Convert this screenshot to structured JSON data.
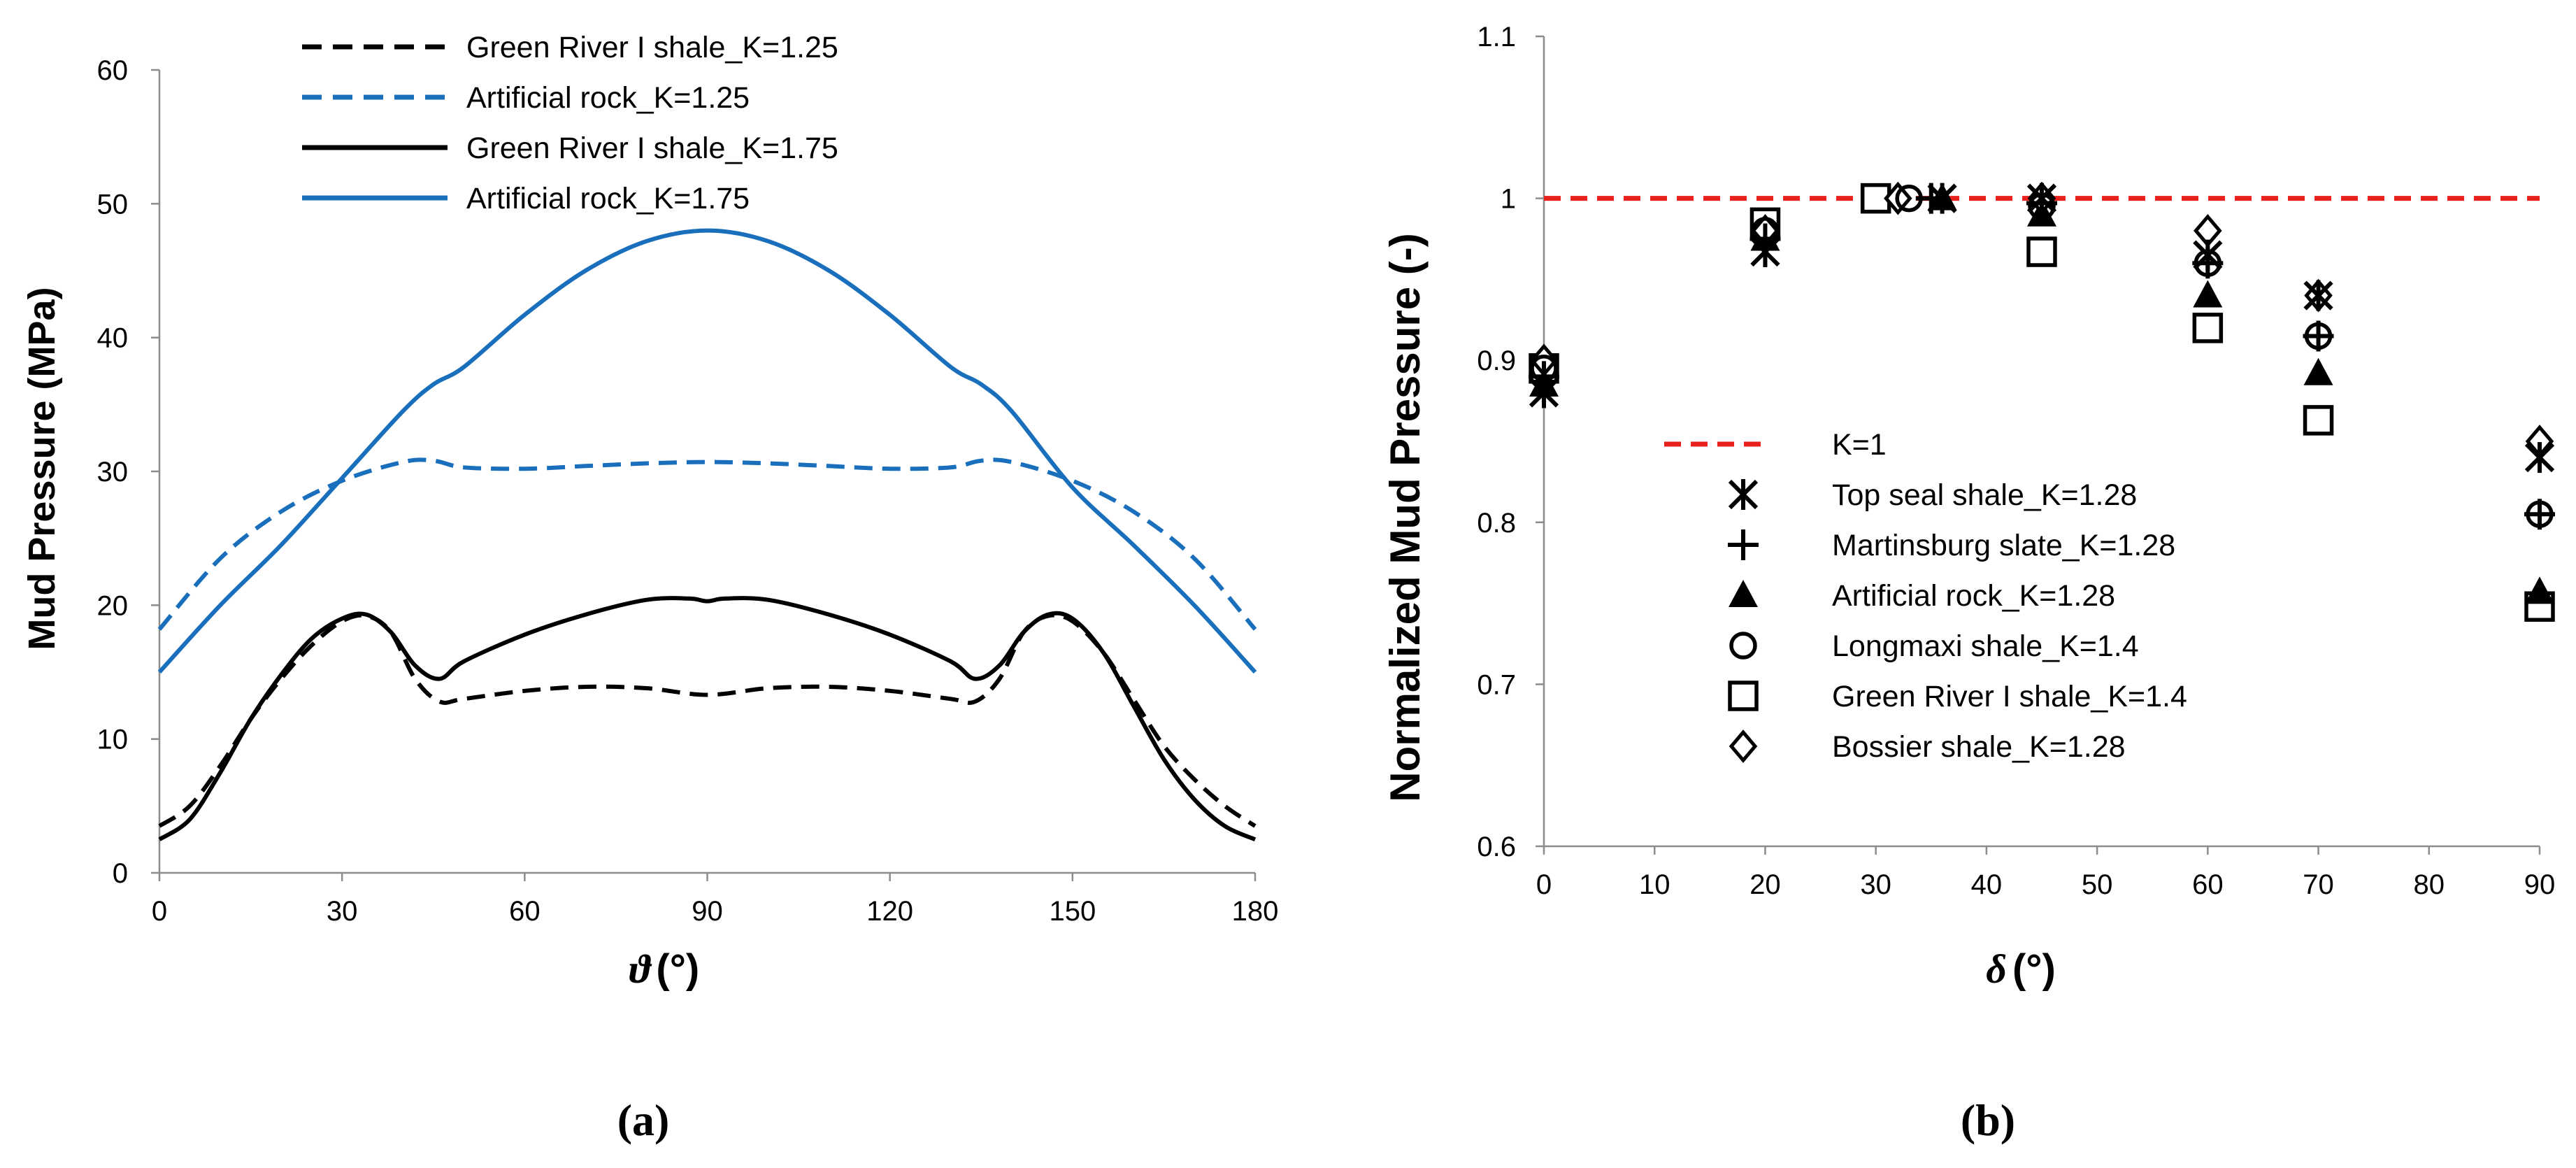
{
  "chart_data": [
    {
      "panel_label": "(a)",
      "type": "line",
      "title": "",
      "xlabel": "ϑ (°)",
      "xlabel_symbol": "ϑ",
      "xlabel_unit": "(°)",
      "ylabel": "Mud Pressure (MPa)",
      "xlim": [
        0,
        180
      ],
      "ylim": [
        0,
        60
      ],
      "xticks": [
        0,
        30,
        60,
        90,
        120,
        150,
        180
      ],
      "yticks": [
        0,
        10,
        20,
        30,
        40,
        50,
        60
      ],
      "grid": false,
      "legend_position": "top-left",
      "series": [
        {
          "name": "Green River I shale_K=1.25",
          "color": "#000000",
          "dash": "dashed",
          "x": [
            0,
            5,
            10,
            15,
            20,
            25,
            30,
            34,
            38,
            42,
            46,
            50,
            60,
            70,
            80,
            90,
            100,
            110,
            120,
            130,
            134,
            138,
            142,
            146,
            150,
            155,
            160,
            165,
            170,
            175,
            180
          ],
          "y": [
            3.5,
            5,
            8,
            11.5,
            14.5,
            17,
            18.8,
            19.2,
            18,
            14.5,
            12.8,
            13,
            13.6,
            13.9,
            13.8,
            13.3,
            13.8,
            13.9,
            13.6,
            13,
            12.8,
            14.5,
            18,
            19.2,
            18.8,
            16.5,
            13,
            9.5,
            7,
            5,
            3.5
          ]
        },
        {
          "name": "Artificial rock_K=1.25",
          "color": "#1a6fbd",
          "dash": "dashed",
          "x": [
            0,
            10,
            20,
            30,
            40,
            45,
            50,
            60,
            70,
            80,
            90,
            100,
            110,
            120,
            130,
            135,
            140,
            150,
            160,
            170,
            180
          ],
          "y": [
            18.2,
            23.5,
            27,
            29.3,
            30.7,
            30.8,
            30.3,
            30.2,
            30.4,
            30.6,
            30.7,
            30.6,
            30.4,
            30.2,
            30.3,
            30.8,
            30.7,
            29.3,
            27,
            23.5,
            18.2
          ]
        },
        {
          "name": "Green River I shale_K=1.75",
          "color": "#000000",
          "dash": "solid",
          "x": [
            0,
            5,
            10,
            15,
            20,
            25,
            30,
            34,
            38,
            42,
            46,
            50,
            60,
            70,
            80,
            87,
            90,
            93,
            100,
            110,
            120,
            130,
            134,
            138,
            142,
            146,
            150,
            155,
            160,
            165,
            170,
            175,
            180
          ],
          "y": [
            2.5,
            4,
            7.5,
            11.5,
            14.8,
            17.5,
            19,
            19.3,
            18,
            15.5,
            14.5,
            15.8,
            17.8,
            19.3,
            20.4,
            20.5,
            20.3,
            20.5,
            20.4,
            19.3,
            17.8,
            15.8,
            14.5,
            15.5,
            18,
            19.3,
            19,
            16.5,
            12.5,
            8.5,
            5.5,
            3.5,
            2.5
          ]
        },
        {
          "name": "Artificial rock_K=1.75",
          "color": "#1a6fbd",
          "dash": "solid",
          "x": [
            0,
            10,
            20,
            30,
            40,
            45,
            50,
            60,
            70,
            80,
            90,
            100,
            110,
            120,
            130,
            135,
            140,
            150,
            160,
            170,
            180
          ],
          "y": [
            15,
            20,
            24.5,
            29.5,
            34.5,
            36.5,
            37.8,
            41.7,
            45,
            47.2,
            48,
            47.2,
            45,
            41.7,
            37.8,
            36.5,
            34.5,
            28.8,
            24.5,
            20,
            15
          ]
        }
      ]
    },
    {
      "panel_label": "(b)",
      "type": "scatter",
      "title": "",
      "xlabel": "δ (°)",
      "xlabel_symbol": "δ",
      "xlabel_unit": "(°)",
      "ylabel": "Normalized Mud Pressure  (-)",
      "xlim": [
        0,
        90
      ],
      "ylim": [
        0.6,
        1.1
      ],
      "xticks": [
        0,
        10,
        20,
        30,
        40,
        50,
        60,
        70,
        80,
        90
      ],
      "yticks": [
        "0.6",
        "0.7",
        "0.8",
        "0.9",
        "1",
        "1.1"
      ],
      "grid": false,
      "legend_position": "center-left",
      "reference_line": {
        "name": "K=1",
        "y": 1.0,
        "color": "#e8211c",
        "dash": "dashed"
      },
      "series": [
        {
          "name": "Top seal shale_K=1.28",
          "marker": "asterisk",
          "x": [
            0,
            20,
            36,
            45,
            60,
            70,
            90
          ],
          "y": [
            0.88,
            0.967,
            1.0,
            1.0,
            0.965,
            0.94,
            0.84
          ]
        },
        {
          "name": "Martinsburg slate_K=1.28",
          "marker": "plus",
          "x": [
            0,
            20,
            35,
            45,
            60,
            70,
            90
          ],
          "y": [
            0.89,
            0.975,
            1.0,
            0.997,
            0.96,
            0.915,
            0.805
          ]
        },
        {
          "name": "Artificial rock_K=1.28",
          "marker": "triangle",
          "x": [
            0,
            20,
            36,
            45,
            60,
            70,
            90
          ],
          "y": [
            0.885,
            0.975,
            1.0,
            0.99,
            0.94,
            0.892,
            0.757
          ]
        },
        {
          "name": "Longmaxi shale_K=1.4",
          "marker": "circle",
          "x": [
            0,
            20,
            33,
            45,
            60,
            70,
            90
          ],
          "y": [
            0.895,
            0.98,
            1.0,
            0.995,
            0.96,
            0.915,
            0.805
          ]
        },
        {
          "name": "Green River I shale_K=1.4",
          "marker": "square",
          "x": [
            0,
            20,
            30,
            45,
            60,
            70,
            90
          ],
          "y": [
            0.895,
            0.985,
            1.0,
            0.967,
            0.92,
            0.863,
            0.748
          ]
        },
        {
          "name": "Bossier shale_K=1.28",
          "marker": "diamond",
          "x": [
            0,
            20,
            32,
            45,
            60,
            70,
            90
          ],
          "y": [
            0.9,
            0.98,
            1.0,
            1.0,
            0.98,
            0.94,
            0.85
          ]
        }
      ]
    }
  ]
}
